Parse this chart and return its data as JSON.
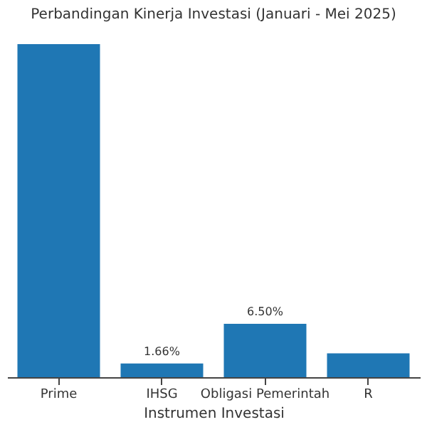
{
  "chart_data": {
    "type": "bar",
    "title": "Perbandingan Kinerja Investasi (Januari - Mei 2025)",
    "xlabel": "Instrumen Investasi",
    "categories": [
      "Prime",
      "IHSG",
      "Obligasi Pemerintah",
      "R"
    ],
    "values": [
      40.5,
      1.66,
      6.5,
      2.9
    ],
    "color": "#1f77b4",
    "value_labels": [
      null,
      "1.66%",
      "6.50%",
      null
    ],
    "grid": false
  }
}
